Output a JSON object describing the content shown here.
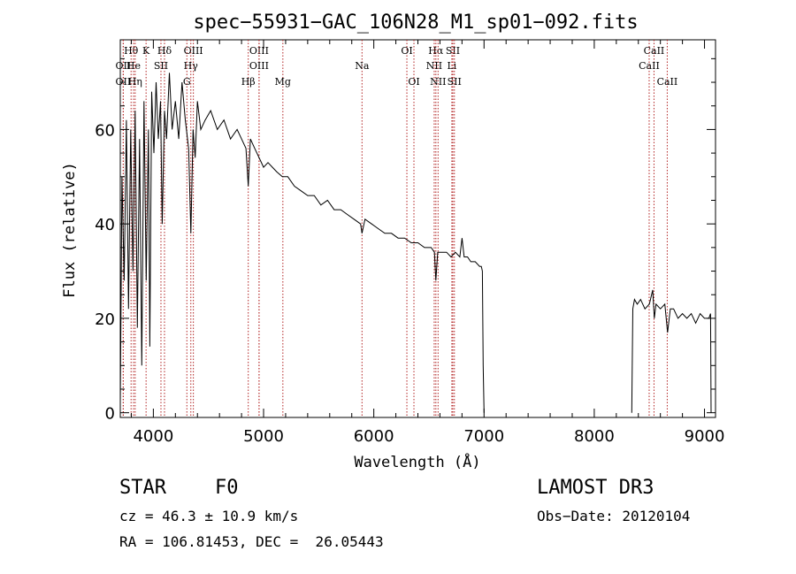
{
  "chart_data": {
    "type": "line",
    "title": "spec−55931−GAC_106N28_M1_sp01−092.fits",
    "xlabel": "Wavelength (Å)",
    "ylabel": "Flux (relative)",
    "xlim": [
      3700,
      9100
    ],
    "ylim": [
      -1,
      79
    ],
    "xticks": [
      4000,
      5000,
      6000,
      7000,
      8000,
      9000
    ],
    "yticks": [
      0,
      20,
      40,
      60
    ],
    "colors": {
      "spectrum": "#000000",
      "lines": "#b22222",
      "axes": "#000000"
    },
    "series": [
      {
        "name": "spectrum-blue",
        "x": [
          3700,
          3715,
          3735,
          3755,
          3775,
          3795,
          3815,
          3835,
          3855,
          3875,
          3895,
          3915,
          3935,
          3955,
          3968,
          3985,
          4005,
          4025,
          4045,
          4065,
          4080,
          4101,
          4120,
          4145,
          4170,
          4200,
          4230,
          4260,
          4290,
          4320,
          4340,
          4360,
          4380,
          4400,
          4430,
          4470,
          4520,
          4580,
          4640,
          4700,
          4760,
          4800,
          4840,
          4861,
          4880,
          4920,
          4960,
          5000,
          5040,
          5080,
          5120,
          5170,
          5220,
          5280,
          5340,
          5400,
          5460,
          5520,
          5580,
          5640,
          5700,
          5760,
          5820,
          5880,
          5893,
          5920,
          5980,
          6040,
          6100,
          6160,
          6220,
          6280,
          6340,
          6400,
          6460,
          6520,
          6550,
          6563,
          6580,
          6620,
          6660,
          6700,
          6740,
          6780,
          6800,
          6820,
          6850,
          6880,
          6920,
          6960,
          6975,
          6985,
          6992,
          7000
        ],
        "y": [
          2,
          50,
          28,
          62,
          22,
          60,
          30,
          64,
          18,
          58,
          10,
          66,
          28,
          60,
          14,
          68,
          55,
          70,
          58,
          66,
          40,
          64,
          58,
          72,
          60,
          66,
          58,
          70,
          62,
          56,
          38,
          60,
          54,
          66,
          60,
          62,
          64,
          60,
          62,
          58,
          60,
          58,
          56,
          48,
          58,
          56,
          54,
          52,
          53,
          52,
          51,
          50,
          50,
          48,
          47,
          46,
          46,
          44,
          45,
          43,
          43,
          42,
          41,
          40,
          38,
          41,
          40,
          39,
          38,
          38,
          37,
          37,
          36,
          36,
          35,
          35,
          34,
          28,
          34,
          34,
          34,
          33,
          34,
          33,
          37,
          33,
          33,
          32,
          32,
          31,
          31,
          30,
          10,
          0
        ]
      },
      {
        "name": "spectrum-red",
        "x": [
          8340,
          8350,
          8365,
          8390,
          8420,
          8460,
          8500,
          8530,
          8545,
          8560,
          8600,
          8640,
          8665,
          8690,
          8720,
          8760,
          8800,
          8840,
          8880,
          8920,
          8960,
          9000,
          9040,
          9055,
          9060
        ],
        "y": [
          0,
          22,
          24,
          23,
          24,
          22,
          23,
          26,
          20,
          23,
          22,
          23,
          17,
          22,
          22,
          20,
          21,
          20,
          21,
          19,
          21,
          20,
          20,
          21,
          0
        ]
      }
    ],
    "line_markers": [
      {
        "label": "Hθ",
        "x": 3798,
        "row": 0
      },
      {
        "label": "K",
        "x": 3934,
        "row": 0
      },
      {
        "label": "Hδ",
        "x": 4101,
        "row": 0
      },
      {
        "label": "OIII",
        "x": 4363,
        "row": 0
      },
      {
        "label": "OIII",
        "x": 4959,
        "row": 0
      },
      {
        "label": "OI",
        "x": 6300,
        "row": 0
      },
      {
        "label": "Hα",
        "x": 6563,
        "row": 0
      },
      {
        "label": "SII",
        "x": 6717,
        "row": 0
      },
      {
        "label": "CaII",
        "x": 8542,
        "row": 0
      },
      {
        "label": "OII",
        "x": 3727,
        "row": 1
      },
      {
        "label": "He",
        "x": 3820,
        "row": 1
      },
      {
        "label": "SII",
        "x": 4069,
        "row": 1
      },
      {
        "label": "Hγ",
        "x": 4340,
        "row": 1
      },
      {
        "label": "OIII",
        "x": 4959,
        "row": 1
      },
      {
        "label": "Na",
        "x": 5893,
        "row": 1
      },
      {
        "label": "NII",
        "x": 6548,
        "row": 1
      },
      {
        "label": "Li",
        "x": 6708,
        "row": 1
      },
      {
        "label": "CaII",
        "x": 8498,
        "row": 1
      },
      {
        "label": "OII",
        "x": 3727,
        "row": 2
      },
      {
        "label": "Hη",
        "x": 3835,
        "row": 2
      },
      {
        "label": "G",
        "x": 4304,
        "row": 2
      },
      {
        "label": "Hβ",
        "x": 4861,
        "row": 2
      },
      {
        "label": "Mg",
        "x": 5175,
        "row": 2
      },
      {
        "label": "OI",
        "x": 6364,
        "row": 2
      },
      {
        "label": "NII",
        "x": 6583,
        "row": 2
      },
      {
        "label": "SII",
        "x": 6731,
        "row": 2
      },
      {
        "label": "CaII",
        "x": 8662,
        "row": 2
      }
    ]
  },
  "info": {
    "object_class": "STAR",
    "subclass": "F0",
    "survey": "LAMOST DR3",
    "redshift": "cz = 46.3 ± 10.9 km/s",
    "obs_date": "Obs−Date: 20120104",
    "coords": "RA = 106.81453, DEC =  26.05443"
  }
}
